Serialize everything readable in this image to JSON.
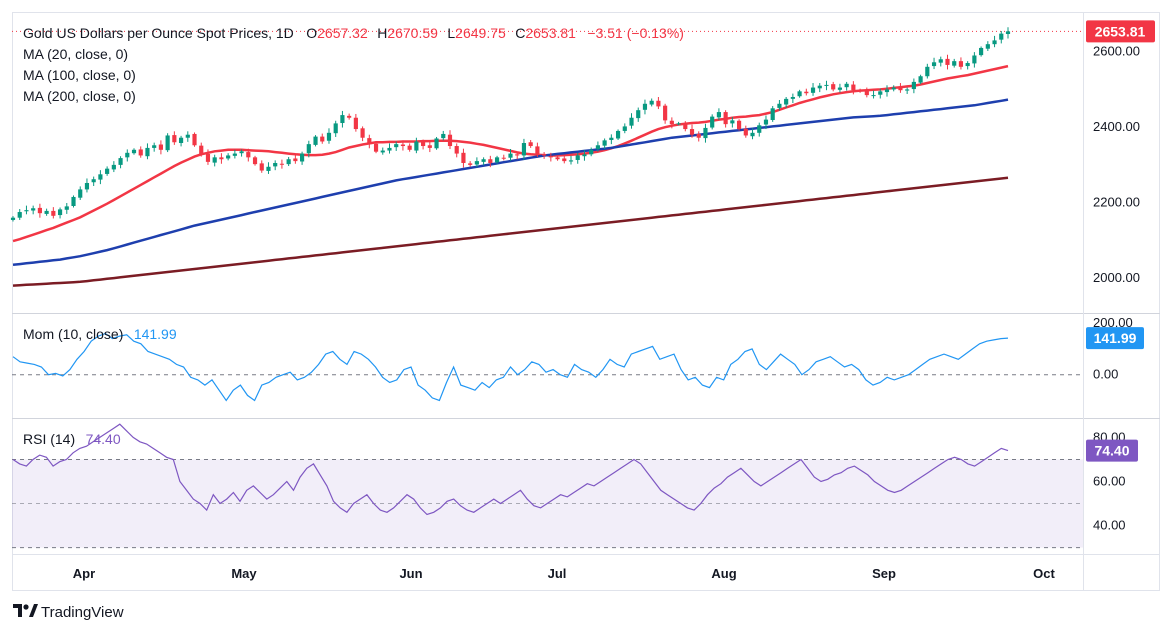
{
  "chart_data": {
    "type": "candlestick",
    "title": "Gold US Dollars per Ounce Spot Prices, 1D",
    "ohlc": {
      "o_label": "O",
      "open": "2657.32",
      "h_label": "H",
      "high": "2670.59",
      "l_label": "L",
      "low": "2649.75",
      "c_label": "C",
      "close": "2653.81",
      "change": "−3.51 (−0.13%)"
    },
    "last_price_label": "2653.81",
    "price_axis": {
      "ticks": [
        "2600.00",
        "2400.00",
        "2200.00",
        "2000.00"
      ],
      "ylim": [
        1910,
        2700
      ]
    },
    "x_ticks": [
      "Apr",
      "May",
      "Jun",
      "Jul",
      "Aug",
      "Sep",
      "Oct"
    ],
    "closes": [
      2160,
      2175,
      2180,
      2185,
      2172,
      2178,
      2165,
      2182,
      2190,
      2215,
      2235,
      2252,
      2262,
      2275,
      2290,
      2300,
      2318,
      2332,
      2340,
      2325,
      2345,
      2352,
      2340,
      2378,
      2360,
      2372,
      2380,
      2352,
      2328,
      2308,
      2320,
      2315,
      2325,
      2330,
      2336,
      2320,
      2302,
      2285,
      2295,
      2305,
      2302,
      2315,
      2310,
      2330,
      2355,
      2375,
      2362,
      2385,
      2410,
      2432,
      2425,
      2395,
      2372,
      2355,
      2335,
      2338,
      2345,
      2355,
      2350,
      2340,
      2362,
      2350,
      2345,
      2370,
      2382,
      2350,
      2330,
      2305,
      2300,
      2310,
      2315,
      2305,
      2320,
      2318,
      2330,
      2325,
      2358,
      2350,
      2328,
      2325,
      2320,
      2315,
      2310,
      2312,
      2325,
      2328,
      2340,
      2352,
      2365,
      2372,
      2390,
      2402,
      2425,
      2445,
      2462,
      2470,
      2455,
      2418,
      2408,
      2410,
      2395,
      2380,
      2372,
      2398,
      2428,
      2440,
      2408,
      2418,
      2395,
      2378,
      2385,
      2405,
      2420,
      2450,
      2462,
      2475,
      2480,
      2495,
      2490,
      2505,
      2510,
      2512,
      2500,
      2505,
      2515,
      2498,
      2495,
      2485,
      2485,
      2495,
      2500,
      2505,
      2498,
      2500,
      2520,
      2535,
      2560,
      2572,
      2580,
      2565,
      2575,
      2560,
      2570,
      2590,
      2610,
      2620,
      2630,
      2648,
      2654
    ],
    "series": [
      {
        "name": "MA (20, close, 0)",
        "color": "#f23645",
        "values": [
          2098,
          2103,
          2109,
          2115,
          2121,
          2127,
          2133,
          2140,
          2147,
          2154,
          2161,
          2170,
          2179,
          2188,
          2197,
          2207,
          2217,
          2227,
          2237,
          2247,
          2257,
          2267,
          2277,
          2287,
          2297,
          2306,
          2314,
          2322,
          2328,
          2332,
          2336,
          2338,
          2340,
          2340,
          2340,
          2339,
          2338,
          2337,
          2336,
          2334,
          2332,
          2330,
          2328,
          2327,
          2326,
          2326,
          2327,
          2330,
          2334,
          2340,
          2346,
          2350,
          2354,
          2357,
          2360,
          2360,
          2361,
          2361,
          2362,
          2362,
          2362,
          2363,
          2363,
          2364,
          2364,
          2364,
          2363,
          2361,
          2359,
          2356,
          2353,
          2349,
          2345,
          2341,
          2337,
          2333,
          2330,
          2328,
          2327,
          2326,
          2325,
          2325,
          2326,
          2327,
          2328,
          2330,
          2332,
          2335,
          2339,
          2344,
          2350,
          2357,
          2364,
          2372,
          2380,
          2388,
          2395,
          2400,
          2404,
          2407,
          2409,
          2411,
          2412,
          2414,
          2417,
          2420,
          2422,
          2425,
          2427,
          2428,
          2430,
          2432,
          2436,
          2440,
          2446,
          2452,
          2458,
          2464,
          2469,
          2474,
          2479,
          2483,
          2487,
          2490,
          2493,
          2495,
          2497,
          2498,
          2499,
          2500,
          2502,
          2504,
          2506,
          2508,
          2510,
          2513,
          2517,
          2521,
          2525,
          2529,
          2532,
          2535,
          2538,
          2542,
          2546,
          2550,
          2554,
          2558,
          2562
        ]
      },
      {
        "name": "MA (100, close, 0)",
        "color": "#1e3fae",
        "values": [
          2035,
          2037,
          2039,
          2041,
          2043,
          2045,
          2047,
          2049,
          2052,
          2055,
          2058,
          2062,
          2066,
          2070,
          2074,
          2079,
          2084,
          2089,
          2094,
          2099,
          2104,
          2109,
          2114,
          2119,
          2124,
          2129,
          2134,
          2139,
          2143,
          2147,
          2151,
          2155,
          2159,
          2163,
          2167,
          2171,
          2175,
          2179,
          2183,
          2187,
          2191,
          2195,
          2199,
          2203,
          2207,
          2211,
          2215,
          2219,
          2223,
          2227,
          2231,
          2235,
          2239,
          2243,
          2247,
          2251,
          2255,
          2259,
          2262,
          2265,
          2268,
          2271,
          2274,
          2277,
          2280,
          2283,
          2286,
          2289,
          2292,
          2295,
          2298,
          2301,
          2304,
          2307,
          2310,
          2313,
          2316,
          2319,
          2322,
          2325,
          2327,
          2329,
          2331,
          2333,
          2335,
          2337,
          2339,
          2341,
          2343,
          2345,
          2348,
          2351,
          2354,
          2357,
          2360,
          2363,
          2366,
          2369,
          2372,
          2374,
          2376,
          2378,
          2380,
          2382,
          2384,
          2386,
          2388,
          2390,
          2392,
          2394,
          2396,
          2398,
          2400,
          2402,
          2404,
          2406,
          2408,
          2410,
          2412,
          2414,
          2416,
          2418,
          2420,
          2422,
          2424,
          2426,
          2427,
          2428,
          2429,
          2430,
          2432,
          2434,
          2436,
          2438,
          2440,
          2442,
          2444,
          2446,
          2448,
          2450,
          2452,
          2454,
          2456,
          2458,
          2461,
          2464,
          2467,
          2470,
          2473
        ]
      },
      {
        "name": "MA (200, close, 0)",
        "color": "#7b1c24",
        "values": [
          1980,
          1981,
          1982,
          1983,
          1984,
          1985,
          1986,
          1987,
          1988,
          1989,
          1990,
          1992,
          1994,
          1996,
          1998,
          2000,
          2002,
          2004,
          2006,
          2008,
          2010,
          2012,
          2014,
          2016,
          2018,
          2020,
          2022,
          2024,
          2026,
          2028,
          2030,
          2032,
          2034,
          2036,
          2038,
          2040,
          2042,
          2044,
          2046,
          2048,
          2050,
          2052,
          2054,
          2056,
          2058,
          2060,
          2062,
          2064,
          2066,
          2068,
          2070,
          2072,
          2074,
          2076,
          2078,
          2080,
          2082,
          2084,
          2086,
          2088,
          2090,
          2092,
          2094,
          2096,
          2098,
          2100,
          2102,
          2104,
          2106,
          2108,
          2110,
          2112,
          2114,
          2116,
          2118,
          2120,
          2122,
          2124,
          2126,
          2128,
          2130,
          2132,
          2134,
          2136,
          2138,
          2140,
          2142,
          2144,
          2146,
          2148,
          2150,
          2152,
          2154,
          2156,
          2158,
          2160,
          2162,
          2164,
          2166,
          2168,
          2170,
          2172,
          2174,
          2176,
          2178,
          2180,
          2182,
          2184,
          2186,
          2188,
          2190,
          2192,
          2194,
          2196,
          2198,
          2200,
          2202,
          2204,
          2206,
          2208,
          2210,
          2212,
          2214,
          2216,
          2218,
          2220,
          2222,
          2224,
          2226,
          2228,
          2230,
          2232,
          2234,
          2236,
          2238,
          2240,
          2242,
          2244,
          2246,
          2248,
          2250,
          2252,
          2254,
          2256,
          2258,
          2260,
          2262,
          2264,
          2266
        ]
      }
    ],
    "momentum": {
      "label": "Mom (10, close)",
      "value_text": "141.99",
      "badge": "141.99",
      "ticks": [
        "200.00",
        "0.00"
      ],
      "ylim": [
        -160,
        220
      ],
      "color": "#2196f3",
      "values": [
        70,
        50,
        45,
        40,
        30,
        0,
        5,
        -5,
        20,
        60,
        90,
        130,
        150,
        160,
        140,
        150,
        155,
        130,
        120,
        90,
        80,
        70,
        60,
        40,
        30,
        -10,
        -20,
        -40,
        -20,
        -60,
        -100,
        -60,
        -40,
        -80,
        -100,
        -40,
        -30,
        -10,
        0,
        10,
        -20,
        -10,
        10,
        40,
        80,
        90,
        60,
        40,
        90,
        80,
        60,
        30,
        -10,
        -30,
        -20,
        20,
        30,
        -40,
        -60,
        -90,
        -100,
        -30,
        30,
        -40,
        -50,
        -60,
        -30,
        -50,
        -20,
        -10,
        30,
        0,
        20,
        50,
        40,
        10,
        20,
        0,
        -10,
        40,
        20,
        10,
        -10,
        20,
        60,
        40,
        30,
        80,
        90,
        100,
        110,
        60,
        70,
        80,
        20,
        -20,
        -10,
        -40,
        -50,
        -10,
        -20,
        40,
        60,
        90,
        100,
        40,
        20,
        50,
        80,
        60,
        40,
        0,
        20,
        50,
        60,
        70,
        50,
        30,
        40,
        20,
        -20,
        -40,
        -30,
        -10,
        -20,
        -10,
        0,
        20,
        40,
        60,
        70,
        80,
        70,
        60,
        80,
        100,
        120,
        130,
        135,
        140,
        142
      ]
    },
    "rsi": {
      "label": "RSI (14)",
      "value_text": "74.40",
      "badge": "74.40",
      "ticks": [
        "80.00",
        "60.00",
        "40.00"
      ],
      "ylim": [
        28,
        87
      ],
      "band": [
        30,
        70
      ],
      "color": "#7e57c2",
      "values": [
        70,
        68,
        67,
        70,
        72,
        71,
        67,
        69,
        70,
        73,
        75,
        76,
        78,
        80,
        82,
        84,
        86,
        83,
        80,
        78,
        77,
        75,
        73,
        71,
        70,
        60,
        56,
        52,
        50,
        47,
        54,
        50,
        52,
        55,
        51,
        56,
        58,
        55,
        52,
        54,
        57,
        60,
        56,
        62,
        66,
        68,
        63,
        58,
        51,
        48,
        46,
        50,
        52,
        54,
        50,
        47,
        46,
        48,
        51,
        54,
        52,
        48,
        45,
        46,
        48,
        51,
        52,
        49,
        47,
        46,
        48,
        50,
        52,
        50,
        52,
        54,
        56,
        52,
        49,
        48,
        50,
        52,
        54,
        53,
        55,
        57,
        59,
        58,
        60,
        62,
        64,
        66,
        68,
        70,
        68,
        64,
        60,
        56,
        54,
        52,
        50,
        48,
        47,
        50,
        54,
        57,
        59,
        62,
        64,
        66,
        63,
        60,
        58,
        60,
        62,
        64,
        66,
        68,
        70,
        66,
        62,
        60,
        61,
        63,
        64,
        66,
        67,
        65,
        63,
        60,
        58,
        56,
        55,
        56,
        58,
        60,
        62,
        64,
        66,
        68,
        70,
        71,
        70,
        68,
        67,
        69,
        71,
        73,
        75,
        74
      ]
    }
  },
  "footer": {
    "logo_text": "TradingView"
  }
}
